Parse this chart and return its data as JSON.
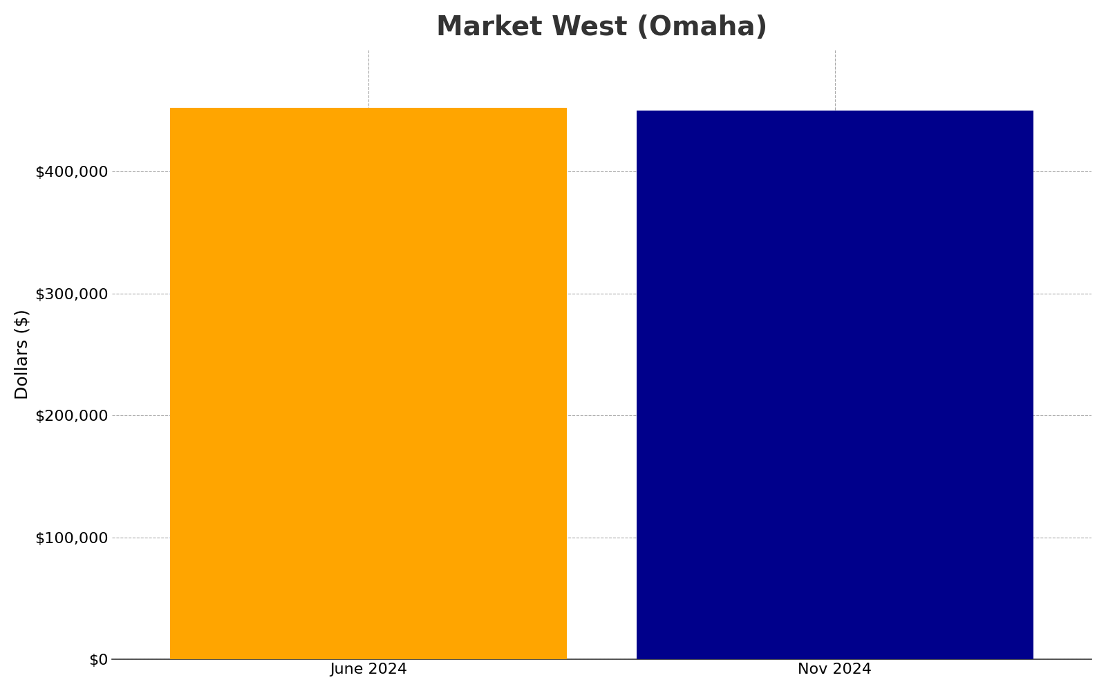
{
  "title": "Market West (Omaha)",
  "categories": [
    "June 2024",
    "Nov 2024"
  ],
  "values": [
    452000,
    450000
  ],
  "bar_colors": [
    "#FFA500",
    "#00008B"
  ],
  "ylabel": "Dollars ($)",
  "ylim": [
    0,
    500000
  ],
  "yticks": [
    0,
    100000,
    200000,
    300000,
    400000
  ],
  "background_color": "#ffffff",
  "grid_color": "#aaaaaa",
  "title_fontsize": 28,
  "axis_fontsize": 18,
  "tick_fontsize": 16,
  "bar_width": 0.85
}
